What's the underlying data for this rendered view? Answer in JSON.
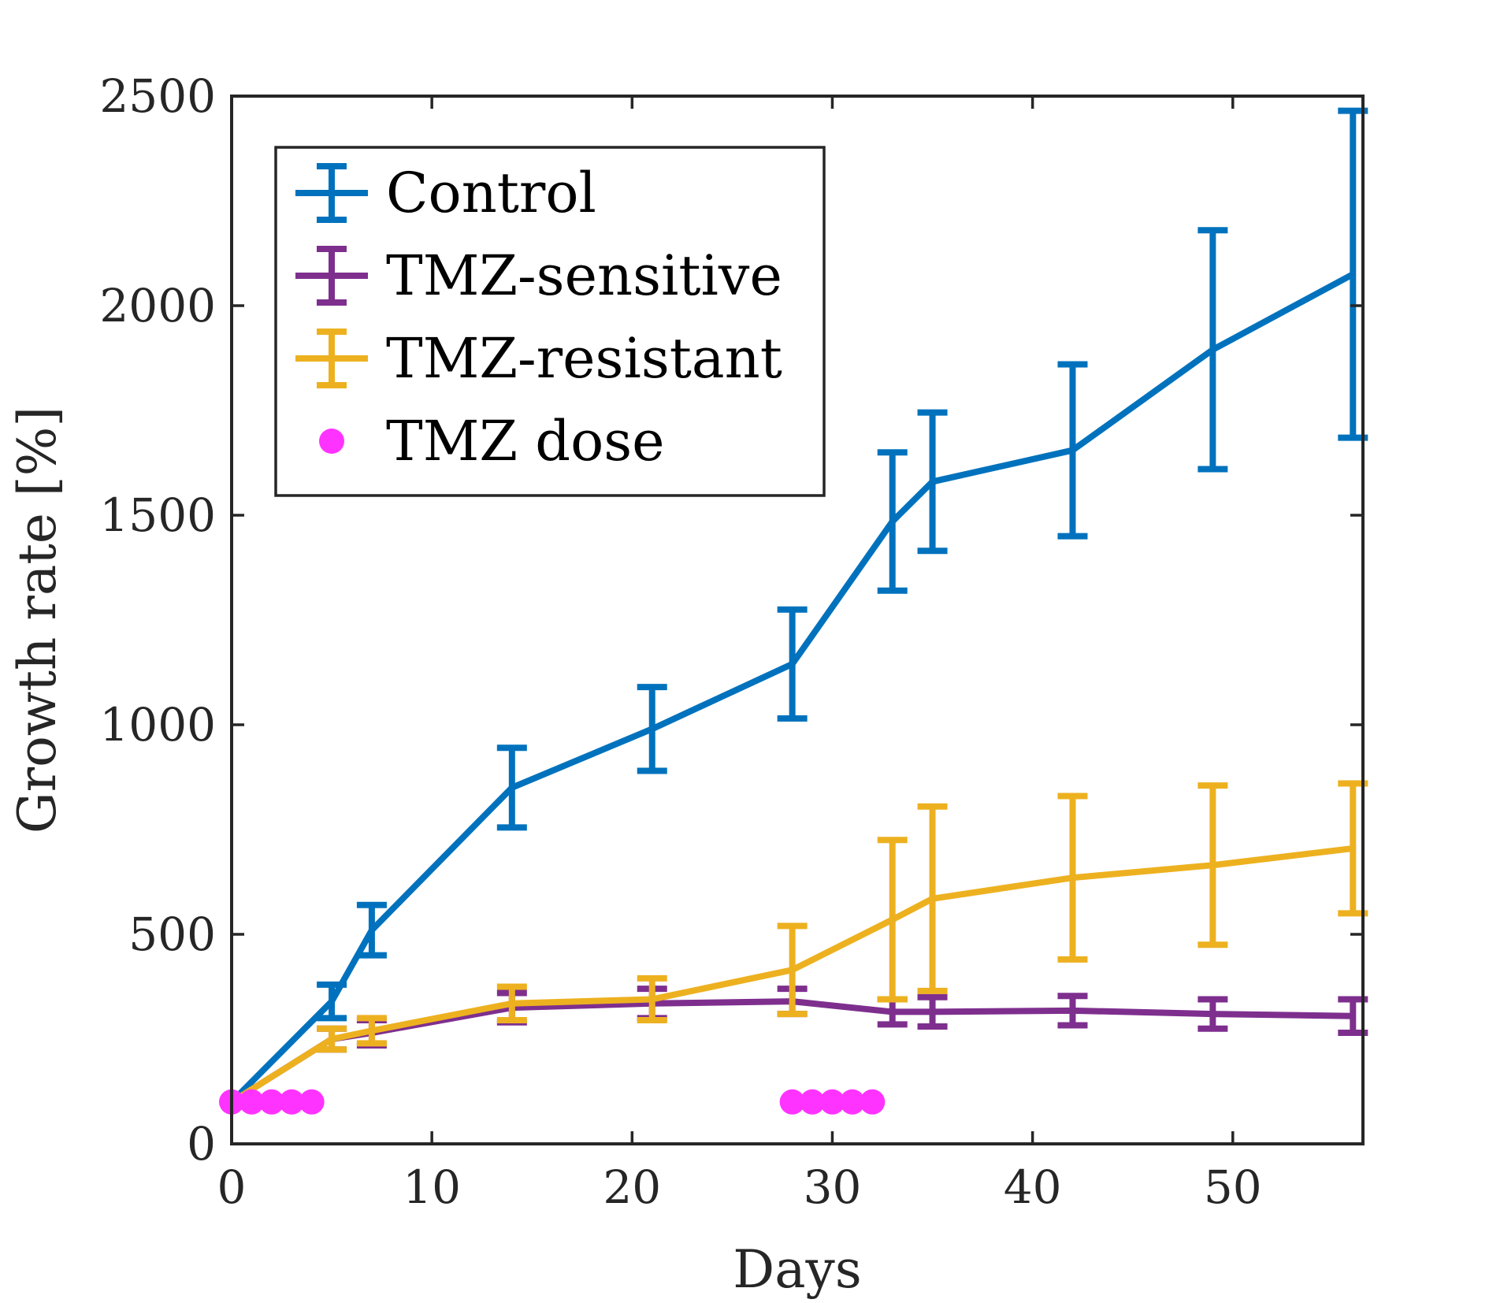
{
  "chart_data": {
    "type": "line",
    "title": "",
    "xlabel": "Days",
    "ylabel": "Growth rate [%]",
    "xlim": [
      0,
      56.5
    ],
    "ylim": [
      0,
      2500
    ],
    "xticks": [
      0,
      10,
      20,
      30,
      40,
      50
    ],
    "yticks": [
      0,
      500,
      1000,
      1500,
      2000,
      2500
    ],
    "grid": false,
    "legend_position": "top-left",
    "series": [
      {
        "name": "Control",
        "color": "#0072BD",
        "x": [
          0,
          5,
          7,
          14,
          21,
          28,
          33,
          35,
          42,
          49,
          56
        ],
        "y": [
          100,
          340,
          510,
          850,
          990,
          1145,
          1485,
          1580,
          1655,
          1895,
          2075
        ],
        "err": [
          0,
          40,
          60,
          95,
          100,
          130,
          165,
          165,
          205,
          285,
          390
        ]
      },
      {
        "name": "TMZ-sensitive",
        "color": "#7E2F8E",
        "x": [
          0,
          5,
          7,
          14,
          21,
          28,
          33,
          35,
          42,
          49,
          56
        ],
        "y": [
          100,
          250,
          265,
          325,
          335,
          340,
          315,
          315,
          318,
          310,
          305
        ],
        "err": [
          0,
          25,
          30,
          35,
          35,
          30,
          30,
          35,
          35,
          35,
          40
        ]
      },
      {
        "name": "TMZ-resistant",
        "color": "#EDB120",
        "x": [
          0,
          5,
          7,
          14,
          21,
          28,
          33,
          35,
          42,
          49,
          56
        ],
        "y": [
          100,
          250,
          270,
          335,
          345,
          415,
          535,
          585,
          635,
          665,
          705
        ],
        "err": [
          0,
          25,
          30,
          40,
          50,
          105,
          190,
          220,
          195,
          190,
          155
        ]
      }
    ],
    "doses": {
      "name": "TMZ dose",
      "color": "#FF33FF",
      "x": [
        0,
        1,
        2,
        3,
        4,
        28,
        29,
        30,
        31,
        32
      ],
      "y": [
        100,
        100,
        100,
        100,
        100,
        100,
        100,
        100,
        100,
        100
      ]
    }
  }
}
